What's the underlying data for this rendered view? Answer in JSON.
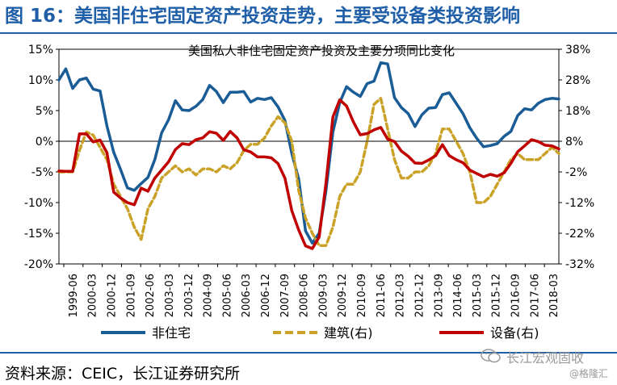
{
  "figure": {
    "title": "图 16：美国非住宅固定资产投资走势，主要受设备类投资影响",
    "source": "资料来源：CEIC，长江证券研究所",
    "watermark_name": "长江宏观固收",
    "watermark_sub": "@格隆汇"
  },
  "chart_data": {
    "type": "line",
    "title": "美国私人非住宅固定资产投资及主要分项同比变化",
    "xlabel": "",
    "ylabel": "",
    "y_left": {
      "min": -20,
      "max": 15,
      "step": 5,
      "suffix": "%"
    },
    "y_right": {
      "min": -32,
      "max": 38,
      "step": 10,
      "suffix": "%"
    },
    "x_ticks": [
      "1999-06",
      "2000-03",
      "2000-12",
      "2001-09",
      "2002-06",
      "2003-03",
      "2003-12",
      "2004-09",
      "2005-06",
      "2006-03",
      "2006-12",
      "2007-09",
      "2008-06",
      "2009-03",
      "2009-12",
      "2010-09",
      "2011-06",
      "2012-03",
      "2012-12",
      "2013-09",
      "2014-06",
      "2015-03",
      "2015-12",
      "2016-09",
      "2017-06",
      "2018-03"
    ],
    "legend_position": "bottom",
    "series": [
      {
        "name": "非住宅",
        "axis": "left",
        "color": "#1a5c96",
        "dash": "",
        "values": [
          10,
          11.8,
          8.6,
          10,
          10.3,
          8.5,
          8.2,
          2.5,
          -1.8,
          -4.6,
          -7.6,
          -8,
          -6.9,
          -5.9,
          -3,
          1.4,
          3.5,
          6.6,
          5.1,
          5,
          5.7,
          6.8,
          9.1,
          8.1,
          6.3,
          8,
          8,
          8.1,
          6.4,
          7,
          6.8,
          7.1,
          5.6,
          3.4,
          -2,
          -6.1,
          -14.6,
          -16.6,
          -15,
          -8,
          1.5,
          6.3,
          8.9,
          8,
          7.3,
          9.4,
          9.8,
          12.8,
          12.6,
          7.1,
          5.5,
          4.5,
          2.4,
          4.3,
          5.4,
          5.5,
          7.6,
          7.9,
          6.2,
          4.5,
          2.2,
          0.5,
          -0.9,
          -0.7,
          -0.4,
          0.8,
          1.6,
          4.2,
          5.3,
          5.1,
          6.2,
          6.8,
          7,
          6.9
        ]
      },
      {
        "name": "建筑(右)",
        "axis": "right",
        "color": "#c9a227",
        "dash": "7,4",
        "values": [
          -2,
          -2,
          -2,
          5,
          11,
          10,
          6,
          2,
          -6,
          -10,
          -14,
          -20,
          -24,
          -14,
          -10,
          -4,
          -2,
          0,
          -2,
          -1,
          -3,
          -1,
          -1,
          -2,
          0,
          -1,
          1,
          5,
          7,
          7,
          9,
          13,
          16,
          14,
          8,
          -8,
          -17,
          -22,
          -26,
          -26,
          -20,
          -10,
          -6,
          -6,
          -2,
          8,
          20,
          22,
          12,
          2,
          -4,
          -4,
          -2,
          -2,
          0,
          4,
          12,
          12,
          8,
          4,
          -2,
          -12,
          -12,
          -10,
          -6,
          -2,
          2,
          4,
          2,
          2,
          2,
          4,
          6,
          4
        ]
      },
      {
        "name": "设备(右)",
        "axis": "right",
        "color": "#c00000",
        "dash": "",
        "values": [
          -1.7,
          -1.8,
          -1.8,
          10.4,
          10.4,
          7.8,
          8.4,
          4.3,
          -8.6,
          -10.5,
          -12,
          -12.7,
          -7.3,
          -8.3,
          -4,
          -1.4,
          1.3,
          5.3,
          7.2,
          6.9,
          8.5,
          9.1,
          11.1,
          10.6,
          8.3,
          11.2,
          9.1,
          5.2,
          4.5,
          2.9,
          2.9,
          2.6,
          0.7,
          -4,
          -14.6,
          -20.9,
          -26.1,
          -27,
          -23.2,
          -5.5,
          15.9,
          21.5,
          19.5,
          14.3,
          10.1,
          10.5,
          11.7,
          12.5,
          8.7,
          7.9,
          4.8,
          3.1,
          0.9,
          0.8,
          1.9,
          3.3,
          6.9,
          3.3,
          2,
          1,
          -1.4,
          -2.5,
          -3.6,
          -2.8,
          -3.4,
          -2.3,
          0.8,
          4.6,
          6.5,
          8.5,
          7.9,
          6.7,
          6.5,
          5.5
        ]
      }
    ]
  }
}
